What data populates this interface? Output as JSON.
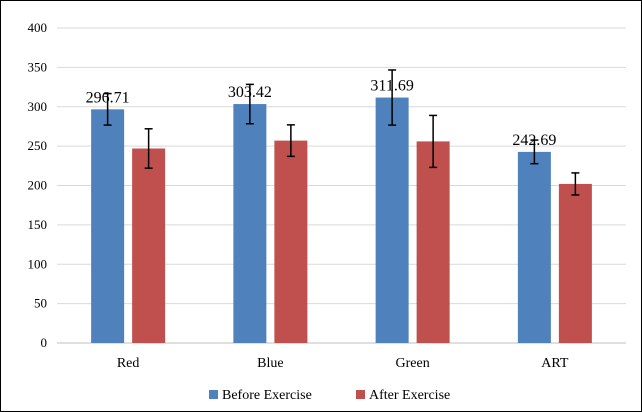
{
  "chart_data": {
    "type": "bar",
    "categories": [
      "Red",
      "Blue",
      "Green",
      "ART"
    ],
    "series": [
      {
        "name": "Before Exercise",
        "color": "#4f81bd",
        "values": [
          296.71,
          303.42,
          311.69,
          242.69
        ],
        "errors": [
          20,
          25,
          35,
          15
        ]
      },
      {
        "name": "After Exercise",
        "color": "#c0504d",
        "values": [
          247,
          257,
          256,
          202
        ],
        "errors": [
          25,
          20,
          33,
          14
        ]
      }
    ],
    "data_labels": [
      "296.71",
      "303.42",
      "311.69",
      "242.69"
    ],
    "yticks": [
      "0",
      "50",
      "100",
      "150",
      "200",
      "250",
      "300",
      "350",
      "400"
    ],
    "ylim": [
      0,
      400
    ],
    "grid": true,
    "legend_position": "bottom"
  }
}
